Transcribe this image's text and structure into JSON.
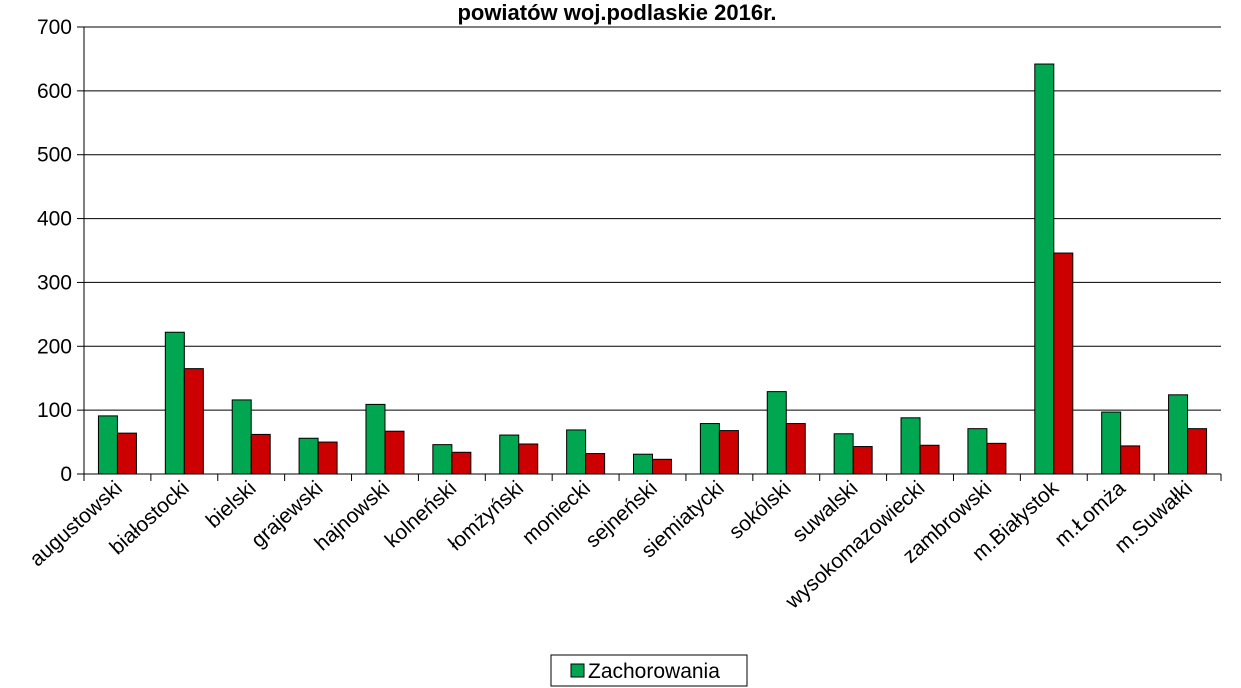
{
  "chart_data": {
    "type": "bar",
    "title": "powiatów woj.podlaskie 2016r.",
    "xlabel": "",
    "ylabel": "",
    "ylim": [
      0,
      700
    ],
    "yticks": [
      0,
      100,
      200,
      300,
      400,
      500,
      600,
      700
    ],
    "grid": true,
    "legend_position": "bottom",
    "categories": [
      "augustowski",
      "białostocki",
      "bielski",
      "grajewski",
      "hajnowski",
      "kolneński",
      "łomżyński",
      "moniecki",
      "sejneński",
      "siemiatycki",
      "sokólski",
      "suwalski",
      "wysokomazowiecki",
      "zambrowski",
      "m.Białystok",
      "m.Łomża",
      "m.Suwałki"
    ],
    "series": [
      {
        "name": "Zachorowania",
        "color": "#00a650",
        "values": [
          91,
          222,
          116,
          56,
          109,
          46,
          61,
          69,
          31,
          79,
          129,
          63,
          88,
          71,
          642,
          97,
          124
        ]
      },
      {
        "color": "#cc0000",
        "values": [
          64,
          165,
          62,
          50,
          67,
          34,
          47,
          32,
          23,
          68,
          79,
          43,
          45,
          48,
          346,
          44,
          71
        ]
      }
    ],
    "legend": {
      "entries": [
        "Zachorowania"
      ]
    }
  }
}
